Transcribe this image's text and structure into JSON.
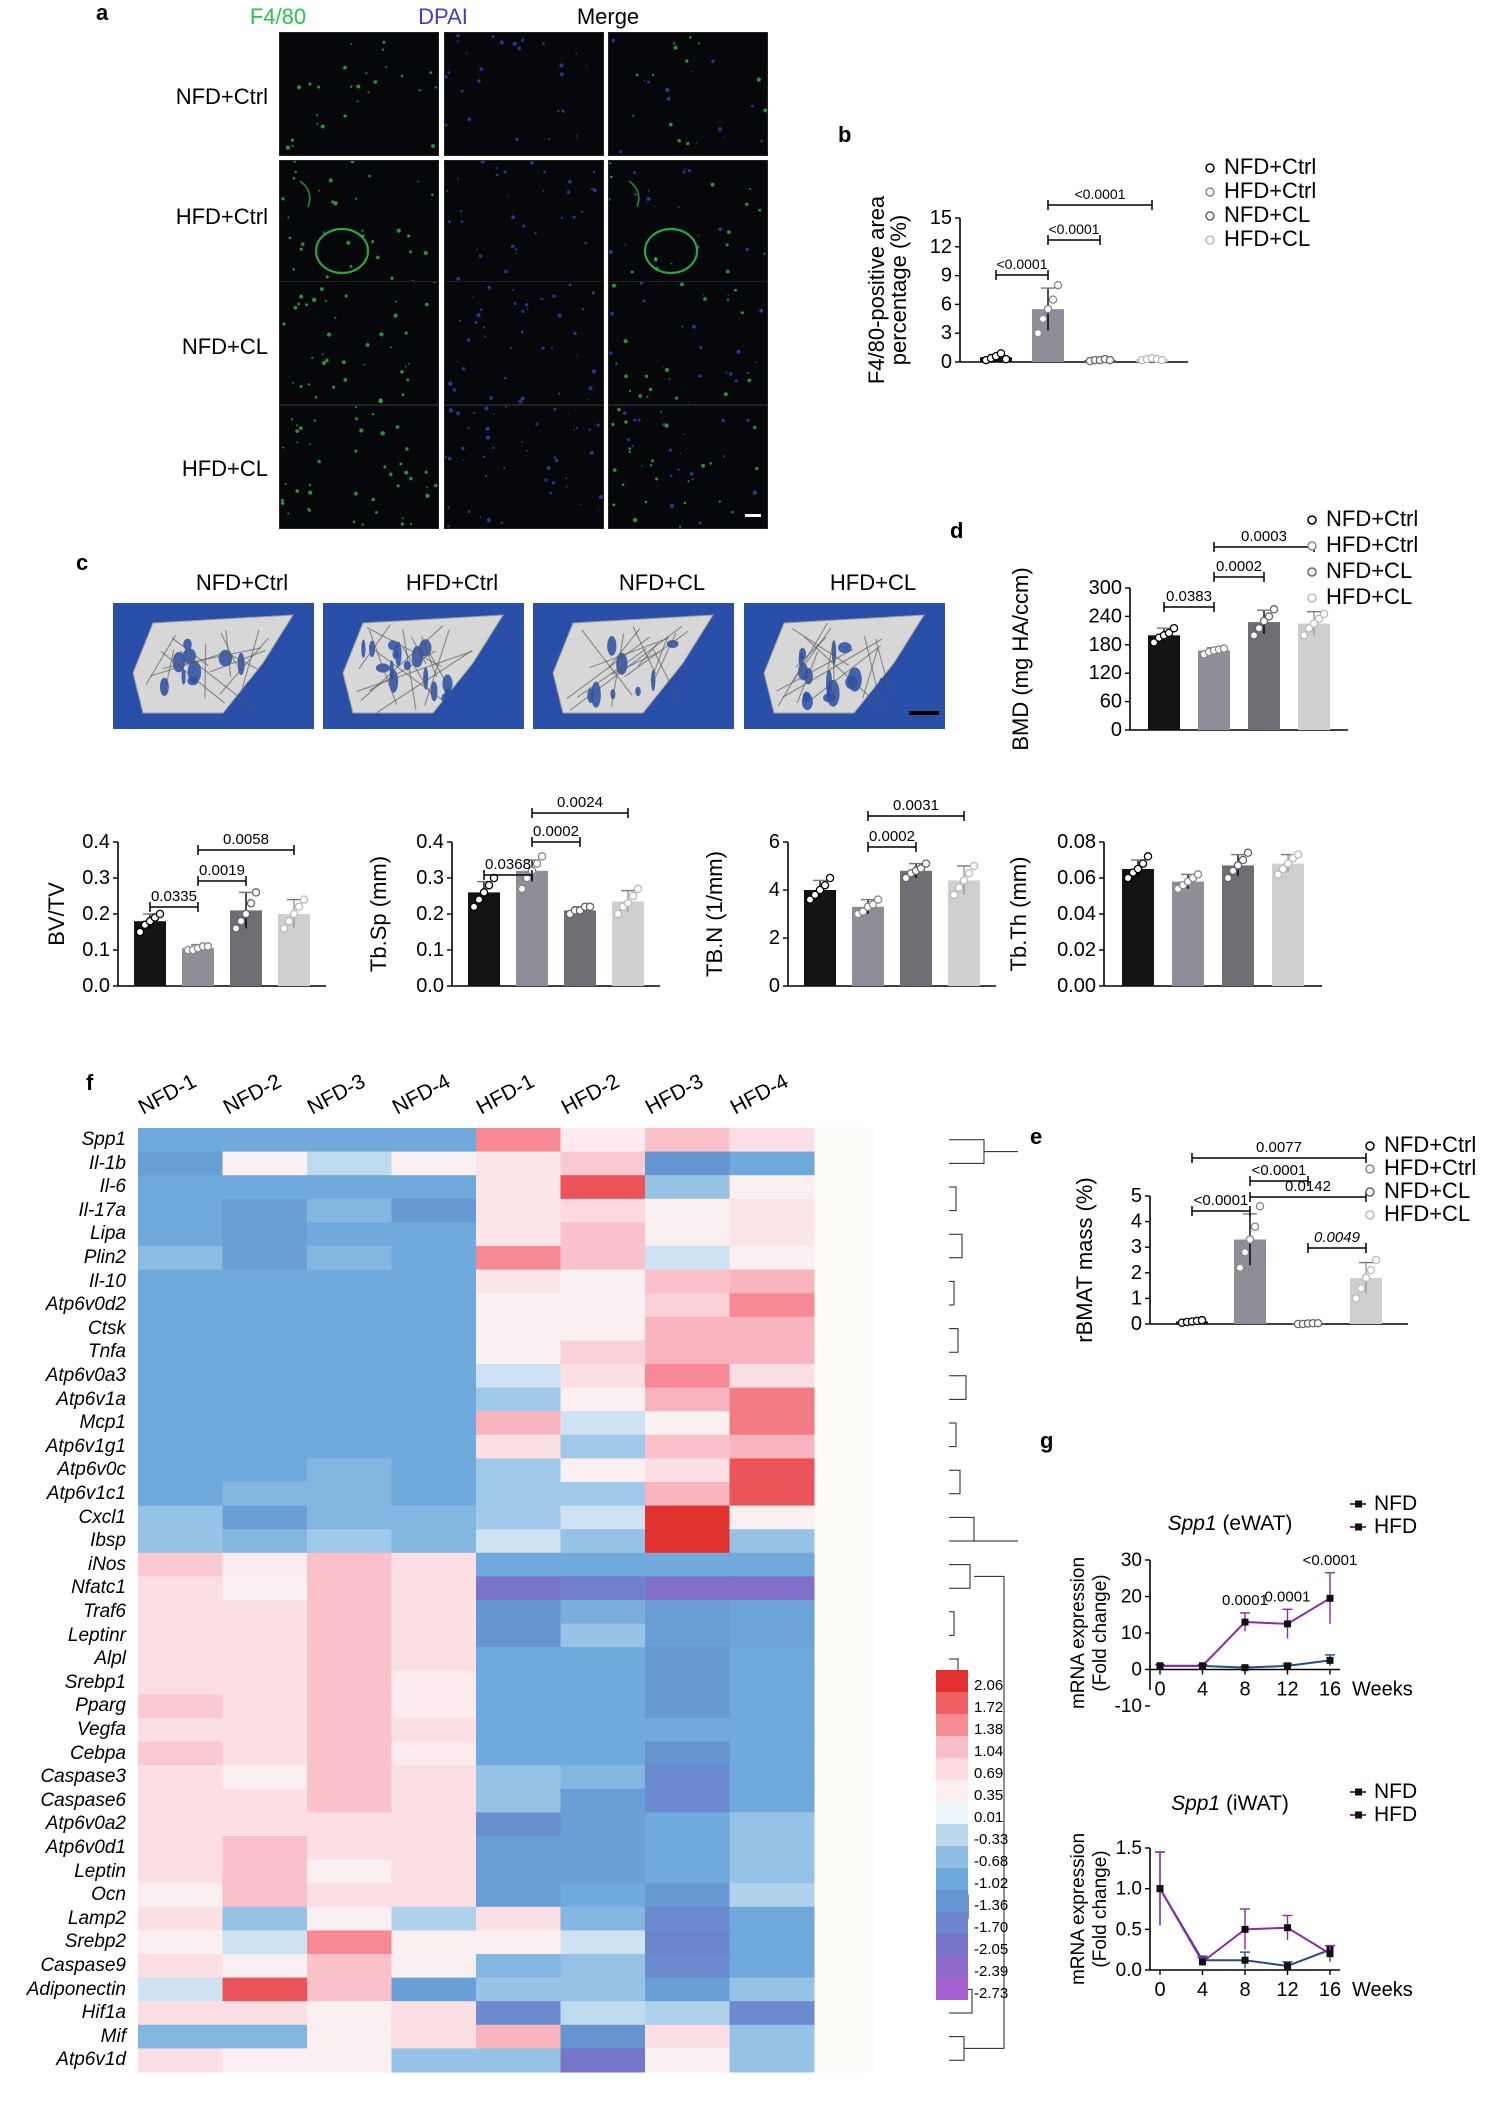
{
  "panels": {
    "a": "a",
    "b": "b",
    "c": "c",
    "d": "d",
    "e": "e",
    "f": "f",
    "g": "g"
  },
  "groups": [
    "NFD+Ctrl",
    "HFD+Ctrl",
    "NFD+CL",
    "HFD+CL"
  ],
  "colors": {
    "f480": "#2ec24a",
    "dapi": "#3f3fbd",
    "bar_dark": "#141414",
    "bar_mid": "#8e8e98",
    "bar_dim": "#6e6e74",
    "bar_light": "#cfcfd2",
    "nfd_line": "#1f4e8c",
    "hfd_line": "#8e2aa7",
    "ct_bg": "#2a4fa8"
  },
  "panel_a": {
    "columns": [
      "F4/80",
      "DPAI",
      "Merge"
    ],
    "rows": [
      "NFD+Ctrl",
      "HFD+Ctrl",
      "NFD+CL",
      "HFD+CL"
    ]
  },
  "panel_c": {
    "labels": [
      "NFD+Ctrl",
      "HFD+Ctrl",
      "NFD+CL",
      "HFD+CL"
    ]
  },
  "chart_data": [
    {
      "id": "b",
      "type": "bar",
      "ylabel": "F4/80-positive area percentage (%)",
      "categories": [
        "NFD+Ctrl",
        "HFD+Ctrl",
        "NFD+CL",
        "HFD+CL"
      ],
      "values": [
        0.5,
        5.5,
        0.2,
        0.3
      ],
      "errors": [
        0.3,
        2.2,
        0.1,
        0.2
      ],
      "points": [
        [
          0.2,
          0.4,
          0.6,
          0.9,
          0.3
        ],
        [
          3.0,
          4.5,
          5.5,
          6.5,
          8.0
        ],
        [
          0.1,
          0.2,
          0.2,
          0.3,
          0.2
        ],
        [
          0.2,
          0.3,
          0.4,
          0.3,
          0.2
        ]
      ],
      "ylim": [
        0,
        15
      ],
      "yticks": [
        0,
        3,
        6,
        9,
        12,
        15
      ],
      "legend": [
        "NFD+Ctrl",
        "HFD+Ctrl",
        "NFD+CL",
        "HFD+CL"
      ],
      "comparisons": [
        {
          "a": 0,
          "b": 1,
          "label": "<0.0001"
        },
        {
          "a": 1,
          "b": 2,
          "label": "<0.0001"
        },
        {
          "a": 1,
          "b": 3,
          "label": "<0.0001"
        }
      ]
    },
    {
      "id": "d",
      "type": "bar",
      "ylabel": "BMD (mg HA/ccm)",
      "categories": [
        "NFD+Ctrl",
        "HFD+Ctrl",
        "NFD+CL",
        "HFD+CL"
      ],
      "values": [
        200,
        168,
        228,
        225
      ],
      "errors": [
        15,
        6,
        25,
        25
      ],
      "points": [
        [
          185,
          195,
          200,
          205,
          215
        ],
        [
          160,
          165,
          168,
          170,
          172
        ],
        [
          200,
          215,
          230,
          240,
          255
        ],
        [
          200,
          215,
          225,
          235,
          245
        ]
      ],
      "ylim": [
        0,
        300
      ],
      "yticks": [
        0,
        60,
        120,
        180,
        240,
        300
      ],
      "legend": [
        "NFD+Ctrl",
        "HFD+Ctrl",
        "NFD+CL",
        "HFD+CL"
      ],
      "comparisons": [
        {
          "a": 0,
          "b": 1,
          "label": "0.0383"
        },
        {
          "a": 1,
          "b": 2,
          "label": "0.0002"
        },
        {
          "a": 1,
          "b": 3,
          "label": "0.0003"
        }
      ]
    },
    {
      "id": "bvtv",
      "type": "bar",
      "ylabel": "BV/TV",
      "categories": [
        "NFD+Ctrl",
        "HFD+Ctrl",
        "NFD+CL",
        "HFD+CL"
      ],
      "values": [
        0.18,
        0.105,
        0.21,
        0.2
      ],
      "errors": [
        0.02,
        0.01,
        0.05,
        0.04
      ],
      "points": [
        [
          0.15,
          0.17,
          0.18,
          0.19,
          0.2
        ],
        [
          0.1,
          0.1,
          0.105,
          0.11,
          0.11
        ],
        [
          0.16,
          0.18,
          0.2,
          0.23,
          0.26
        ],
        [
          0.16,
          0.18,
          0.2,
          0.22,
          0.24
        ]
      ],
      "ylim": [
        0,
        0.4
      ],
      "yticks": [
        0.0,
        0.1,
        0.2,
        0.3,
        0.4
      ],
      "comparisons": [
        {
          "a": 0,
          "b": 1,
          "label": "0.0335"
        },
        {
          "a": 1,
          "b": 2,
          "label": "0.0019"
        },
        {
          "a": 1,
          "b": 3,
          "label": "0.0058"
        }
      ]
    },
    {
      "id": "tbsp",
      "type": "bar",
      "ylabel": "Tb.Sp (mm)",
      "categories": [
        "NFD+Ctrl",
        "HFD+Ctrl",
        "NFD+CL",
        "HFD+CL"
      ],
      "values": [
        0.26,
        0.32,
        0.21,
        0.235
      ],
      "errors": [
        0.03,
        0.03,
        0.01,
        0.03
      ],
      "points": [
        [
          0.22,
          0.24,
          0.26,
          0.28,
          0.3
        ],
        [
          0.27,
          0.3,
          0.32,
          0.34,
          0.36
        ],
        [
          0.2,
          0.21,
          0.21,
          0.22,
          0.22
        ],
        [
          0.2,
          0.22,
          0.23,
          0.25,
          0.27
        ]
      ],
      "ylim": [
        0,
        0.4
      ],
      "yticks": [
        0.0,
        0.1,
        0.2,
        0.3,
        0.4
      ],
      "comparisons": [
        {
          "a": 0,
          "b": 1,
          "label": "0.0368"
        },
        {
          "a": 1,
          "b": 2,
          "label": "0.0002"
        },
        {
          "a": 1,
          "b": 3,
          "label": "0.0024"
        }
      ]
    },
    {
      "id": "tbn",
      "type": "bar",
      "ylabel": "TB.N (1/mm)",
      "categories": [
        "NFD+Ctrl",
        "HFD+Ctrl",
        "NFD+CL",
        "HFD+CL"
      ],
      "values": [
        4.0,
        3.3,
        4.8,
        4.4
      ],
      "errors": [
        0.4,
        0.3,
        0.3,
        0.6
      ],
      "points": [
        [
          3.6,
          3.8,
          4.0,
          4.2,
          4.5
        ],
        [
          3.0,
          3.1,
          3.3,
          3.4,
          3.6
        ],
        [
          4.5,
          4.7,
          4.8,
          4.9,
          5.1
        ],
        [
          3.8,
          4.1,
          4.4,
          4.7,
          5.0
        ]
      ],
      "ylim": [
        0,
        6
      ],
      "yticks": [
        0,
        2,
        4,
        6
      ],
      "comparisons": [
        {
          "a": 1,
          "b": 2,
          "label": "0.0002"
        },
        {
          "a": 1,
          "b": 3,
          "label": "0.0031"
        }
      ]
    },
    {
      "id": "tbth",
      "type": "bar",
      "ylabel": "Tb.Th (mm)",
      "categories": [
        "NFD+Ctrl",
        "HFD+Ctrl",
        "NFD+CL",
        "HFD+CL"
      ],
      "values": [
        0.065,
        0.058,
        0.067,
        0.068
      ],
      "errors": [
        0.005,
        0.004,
        0.006,
        0.005
      ],
      "points": [
        [
          0.06,
          0.063,
          0.065,
          0.068,
          0.072
        ],
        [
          0.054,
          0.056,
          0.058,
          0.06,
          0.062
        ],
        [
          0.06,
          0.064,
          0.067,
          0.07,
          0.074
        ],
        [
          0.062,
          0.065,
          0.068,
          0.071,
          0.073
        ]
      ],
      "ylim": [
        0,
        0.08
      ],
      "yticks": [
        0.0,
        0.02,
        0.04,
        0.06,
        0.08
      ],
      "comparisons": []
    },
    {
      "id": "e",
      "type": "bar",
      "ylabel": "rBMAT mass (%)",
      "categories": [
        "NFD+Ctrl",
        "HFD+Ctrl",
        "NFD+CL",
        "HFD+CL"
      ],
      "values": [
        0.1,
        3.3,
        0.02,
        1.8
      ],
      "errors": [
        0.05,
        1.0,
        0.01,
        0.6
      ],
      "points": [
        [
          0.05,
          0.08,
          0.1,
          0.12,
          0.15
        ],
        [
          2.2,
          2.8,
          3.3,
          3.8,
          4.6
        ],
        [
          0.0,
          0.0,
          0.02,
          0.03,
          0.03
        ],
        [
          1.0,
          1.4,
          1.8,
          2.1,
          2.5
        ]
      ],
      "ylim": [
        0,
        5
      ],
      "yticks": [
        0,
        1,
        2,
        3,
        4,
        5
      ],
      "legend": [
        "NFD+Ctrl",
        "HFD+Ctrl",
        "NFD+CL",
        "HFD+CL"
      ],
      "comparisons": [
        {
          "a": 0,
          "b": 1,
          "label": "<0.0001"
        },
        {
          "a": 1,
          "b": 2,
          "label": "<0.0001"
        },
        {
          "a": 1,
          "b": 3,
          "label": "0.0142"
        },
        {
          "a": 0,
          "b": 3,
          "label": "0.0077"
        },
        {
          "a": 2,
          "b": 3,
          "label": "0.0049"
        }
      ]
    },
    {
      "id": "g1",
      "type": "line",
      "title": "Spp1 (eWAT)",
      "title_gene": "Spp1",
      "title_rest": " (eWAT)",
      "ylabel": "mRNA expression (Fold change)",
      "xlabel": "Weeks",
      "x": [
        0,
        4,
        8,
        12,
        16
      ],
      "series": [
        {
          "name": "NFD",
          "values": [
            1,
            1,
            0.5,
            1,
            2.5
          ],
          "errors": [
            0.3,
            0.3,
            0.3,
            0.5,
            1.5
          ]
        },
        {
          "name": "HFD",
          "values": [
            1,
            1,
            13,
            12.5,
            19.5
          ],
          "errors": [
            0.3,
            0.3,
            2.5,
            4,
            7
          ]
        }
      ],
      "ylim": [
        -10,
        30
      ],
      "yticks": [
        -10,
        0,
        10,
        20,
        30
      ],
      "annotations": [
        {
          "x": 8,
          "label": "0.0001"
        },
        {
          "x": 12,
          "label": "0.0001"
        },
        {
          "x": 16,
          "label": "<0.0001"
        }
      ]
    },
    {
      "id": "g2",
      "type": "line",
      "title": "Spp1 (iWAT)",
      "title_gene": "Spp1",
      "title_rest": " (iWAT)",
      "ylabel": "mRNA expression (Fold change)",
      "xlabel": "Weeks",
      "x": [
        0,
        4,
        8,
        12,
        16
      ],
      "series": [
        {
          "name": "NFD",
          "values": [
            1.0,
            0.12,
            0.12,
            0.05,
            0.25
          ],
          "errors": [
            0.45,
            0.05,
            0.1,
            0.05,
            0.05
          ]
        },
        {
          "name": "HFD",
          "values": [
            1.0,
            0.1,
            0.5,
            0.52,
            0.2
          ],
          "errors": [
            0.45,
            0.05,
            0.25,
            0.15,
            0.1
          ]
        }
      ],
      "ylim": [
        0,
        1.5
      ],
      "yticks": [
        0.0,
        0.5,
        1.0,
        1.5
      ],
      "annotations": []
    },
    {
      "id": "f",
      "type": "heatmap",
      "columns": [
        "NFD-1",
        "NFD-2",
        "NFD-3",
        "NFD-4",
        "HFD-1",
        "HFD-2",
        "HFD-3",
        "HFD-4"
      ],
      "rows": [
        "Spp1",
        "Il-1b",
        "Il-6",
        "Il-17a",
        "Lipa",
        "Plin2",
        "Il-10",
        "Atp6v0d2",
        "Ctsk",
        "Tnfa",
        "Atp6v0a3",
        "Atp6v1a",
        "Mcp1",
        "Atp6v1g1",
        "Atp6v0c",
        "Atp6v1c1",
        "Cxcl1",
        "Ibsp",
        "iNos",
        "Nfatc1",
        "Traf6",
        "Leptinr",
        "Alpl",
        "Srebp1",
        "Pparg",
        "Vegfa",
        "Cebpa",
        "Caspase3",
        "Caspase6",
        "Atp6v0a2",
        "Atp6v0d1",
        "Leptin",
        "Ocn",
        "Lamp2",
        "Srebp2",
        "Caspase9",
        "Adiponectin",
        "Hif1a",
        "Mif",
        "Atp6v1d"
      ],
      "values": [
        [
          -1.0,
          -1.0,
          -1.0,
          -1.0,
          1.4,
          0.4,
          1.0,
          0.6
        ],
        [
          -1.2,
          0.3,
          -0.3,
          0.3,
          0.5,
          0.9,
          -1.4,
          -1.0
        ],
        [
          -1.0,
          -1.0,
          -1.0,
          -1.0,
          0.5,
          1.8,
          -0.6,
          0.3
        ],
        [
          -1.0,
          -1.2,
          -0.8,
          -1.3,
          0.5,
          0.7,
          0.3,
          0.5
        ],
        [
          -1.0,
          -1.2,
          -1.0,
          -1.0,
          0.5,
          1.0,
          0.3,
          0.5
        ],
        [
          -0.7,
          -1.2,
          -0.8,
          -1.0,
          1.4,
          1.0,
          -0.2,
          0.3
        ],
        [
          -1.0,
          -1.0,
          -1.0,
          -1.0,
          0.5,
          0.3,
          1.0,
          1.1
        ],
        [
          -1.0,
          -1.0,
          -1.0,
          -1.0,
          0.3,
          0.3,
          0.8,
          1.4
        ],
        [
          -1.0,
          -1.0,
          -1.0,
          -1.0,
          0.3,
          0.3,
          1.1,
          1.1
        ],
        [
          -1.0,
          -1.0,
          -1.0,
          -1.0,
          0.3,
          0.8,
          1.1,
          1.1
        ],
        [
          -1.0,
          -1.0,
          -1.0,
          -1.0,
          -0.2,
          0.6,
          1.4,
          0.6
        ],
        [
          -1.0,
          -1.0,
          -1.0,
          -1.0,
          -0.5,
          0.3,
          1.1,
          1.5
        ],
        [
          -1.0,
          -1.0,
          -1.0,
          -1.0,
          1.1,
          -0.2,
          0.3,
          1.5
        ],
        [
          -1.0,
          -1.0,
          -1.0,
          -1.0,
          0.6,
          -0.5,
          1.0,
          1.1
        ],
        [
          -1.0,
          -1.0,
          -0.8,
          -1.0,
          -0.5,
          0.3,
          0.6,
          1.8
        ],
        [
          -1.0,
          -0.8,
          -0.8,
          -1.0,
          -0.5,
          -0.5,
          1.1,
          1.8
        ],
        [
          -0.6,
          -1.2,
          -0.8,
          -0.8,
          -0.5,
          -0.2,
          2.1,
          0.3
        ],
        [
          -0.6,
          -0.8,
          -0.5,
          -0.8,
          -0.2,
          -0.6,
          2.1,
          -0.6
        ],
        [
          0.9,
          0.4,
          1.0,
          0.6,
          -1.0,
          -1.0,
          -1.0,
          -1.0
        ],
        [
          0.6,
          0.3,
          1.0,
          0.6,
          -2.1,
          -1.8,
          -2.2,
          -2.2
        ],
        [
          0.6,
          0.6,
          1.0,
          0.6,
          -1.4,
          -0.9,
          -1.2,
          -1.1
        ],
        [
          0.6,
          0.6,
          1.0,
          0.6,
          -1.4,
          -0.6,
          -1.2,
          -1.1
        ],
        [
          0.6,
          0.6,
          1.0,
          0.6,
          -1.0,
          -1.0,
          -1.3,
          -1.0
        ],
        [
          0.6,
          0.6,
          1.0,
          0.4,
          -1.0,
          -1.0,
          -1.3,
          -1.0
        ],
        [
          0.9,
          0.6,
          1.0,
          0.4,
          -1.0,
          -1.0,
          -1.3,
          -1.0
        ],
        [
          0.6,
          0.6,
          1.0,
          0.6,
          -1.0,
          -1.0,
          -1.0,
          -1.0
        ],
        [
          0.9,
          0.6,
          1.0,
          0.4,
          -1.0,
          -1.0,
          -1.4,
          -1.0
        ],
        [
          0.6,
          0.3,
          1.0,
          0.6,
          -0.6,
          -0.8,
          -1.6,
          -1.0
        ],
        [
          0.6,
          0.6,
          1.0,
          0.6,
          -0.6,
          -1.2,
          -1.6,
          -1.0
        ],
        [
          0.6,
          0.6,
          0.6,
          0.6,
          -1.5,
          -1.2,
          -1.0,
          -0.6
        ],
        [
          0.6,
          1.0,
          0.6,
          0.6,
          -1.2,
          -1.2,
          -1.0,
          -0.6
        ],
        [
          0.6,
          1.0,
          0.3,
          0.6,
          -1.2,
          -1.2,
          -1.0,
          -0.6
        ],
        [
          0.3,
          1.0,
          0.6,
          0.6,
          -1.2,
          -1.0,
          -1.3,
          -0.4
        ],
        [
          0.6,
          -0.6,
          0.3,
          -0.4,
          0.6,
          -0.8,
          -1.6,
          -1.0
        ],
        [
          0.3,
          -0.2,
          1.4,
          0.3,
          0.3,
          -0.2,
          -1.7,
          -1.0
        ],
        [
          0.6,
          0.3,
          1.0,
          0.3,
          -0.8,
          -0.6,
          -1.6,
          -1.0
        ],
        [
          -0.2,
          1.8,
          1.0,
          -1.2,
          -0.6,
          -0.6,
          -1.2,
          -0.6
        ],
        [
          0.6,
          0.6,
          0.3,
          0.6,
          -1.6,
          -0.3,
          -0.4,
          -1.6
        ],
        [
          -0.8,
          -0.8,
          0.3,
          0.6,
          1.1,
          -1.4,
          0.6,
          -0.6
        ],
        [
          0.6,
          0.3,
          0.3,
          -0.6,
          -0.6,
          -2.0,
          0.3,
          -0.6
        ]
      ],
      "legend_ticks": [
        "2.06",
        "1.72",
        "1.38",
        "1.04",
        "0.69",
        "0.35",
        "0.01",
        "-0.33",
        "-0.68",
        "-1.02",
        "-1.36",
        "-1.70",
        "-2.05",
        "-2.39",
        "-2.73"
      ]
    }
  ]
}
